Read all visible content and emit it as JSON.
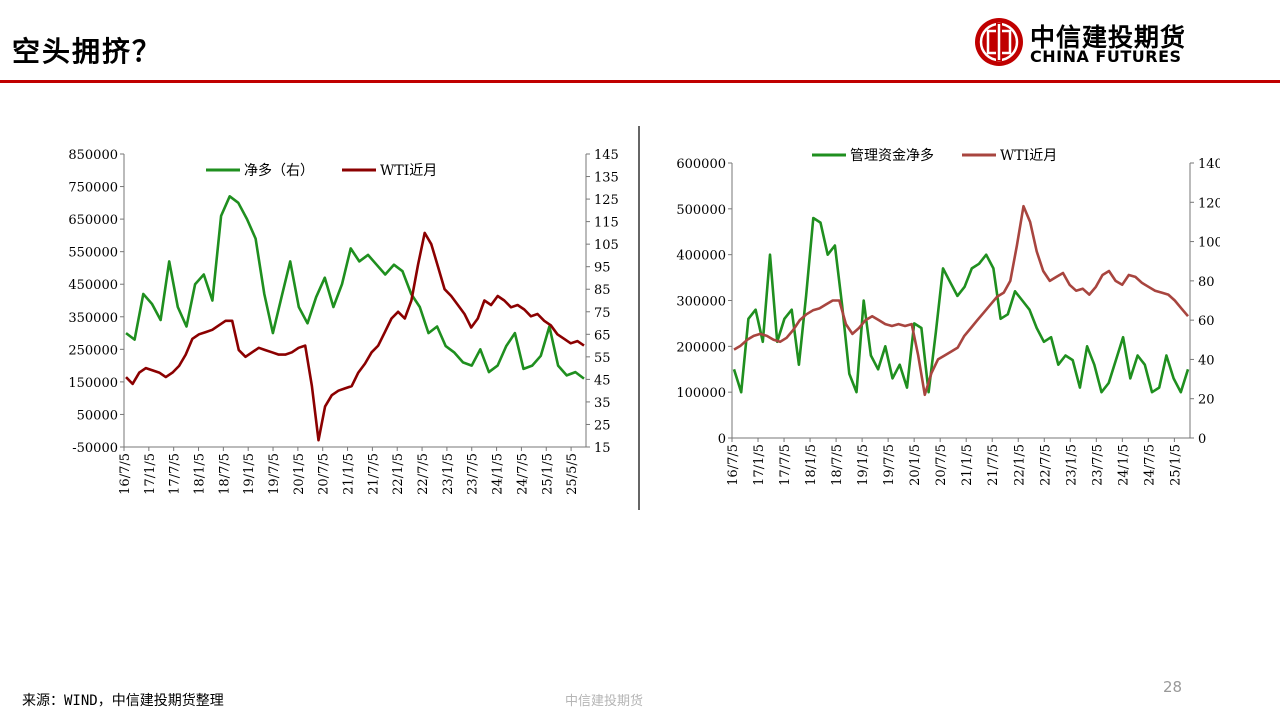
{
  "page": {
    "title": "空头拥挤？",
    "brand_cn": "中信建投期货",
    "brand_en": "CHINA FUTURES",
    "source": "来源：WIND，中信建投期货整理",
    "footer": "中信建投期货",
    "page_number": "28"
  },
  "colors": {
    "green": "#1f8f1f",
    "darkred": "#8b0000",
    "brown": "#a8453f",
    "brand_red": "#c00000"
  },
  "chart_data": [
    {
      "type": "line",
      "x_ticks": [
        "16/7/5",
        "17/1/5",
        "17/7/5",
        "18/1/5",
        "18/7/5",
        "19/1/5",
        "19/7/5",
        "20/1/5",
        "20/7/5",
        "21/1/5",
        "21/7/5",
        "22/1/5",
        "22/7/5",
        "23/1/5",
        "23/7/5",
        "24/1/5",
        "24/7/5",
        "25/1/5",
        "25/5/5"
      ],
      "y_left": {
        "ticks": [
          "850000",
          "750000",
          "650000",
          "550000",
          "450000",
          "350000",
          "250000",
          "150000",
          "50000",
          "-50000"
        ],
        "lim": [
          -50000,
          850000
        ]
      },
      "y_right": {
        "ticks": [
          "145",
          "135",
          "125",
          "115",
          "105",
          "95",
          "85",
          "75",
          "65",
          "55",
          "45",
          "35",
          "25",
          "15"
        ],
        "lim": [
          15,
          145
        ]
      },
      "series": [
        {
          "name": "净多（右）",
          "axis": "left",
          "color": "#1f8f1f",
          "values": [
            300000,
            280000,
            420000,
            390000,
            340000,
            520000,
            380000,
            320000,
            450000,
            480000,
            400000,
            660000,
            720000,
            700000,
            650000,
            590000,
            420000,
            300000,
            410000,
            520000,
            380000,
            330000,
            410000,
            470000,
            380000,
            450000,
            560000,
            520000,
            540000,
            510000,
            480000,
            510000,
            490000,
            420000,
            380000,
            300000,
            320000,
            260000,
            240000,
            210000,
            200000,
            250000,
            180000,
            200000,
            260000,
            300000,
            190000,
            200000,
            230000,
            320000,
            200000,
            170000,
            180000,
            160000
          ]
        },
        {
          "name": "WTI近月",
          "axis": "right",
          "color": "#8b0000",
          "values": [
            46,
            43,
            48,
            50,
            49,
            48,
            46,
            48,
            51,
            56,
            63,
            65,
            66,
            67,
            69,
            71,
            71,
            58,
            55,
            57,
            59,
            58,
            57,
            56,
            56,
            57,
            59,
            60,
            42,
            18,
            33,
            38,
            40,
            41,
            42,
            48,
            52,
            57,
            60,
            66,
            72,
            75,
            72,
            80,
            96,
            110,
            105,
            95,
            85,
            82,
            78,
            74,
            68,
            72,
            80,
            78,
            82,
            80,
            77,
            78,
            76,
            73,
            74,
            71,
            69,
            65,
            63,
            61,
            62,
            60
          ]
        }
      ]
    },
    {
      "type": "line",
      "x_ticks": [
        "16/7/5",
        "17/1/5",
        "17/7/5",
        "18/1/5",
        "18/7/5",
        "19/1/5",
        "19/7/5",
        "20/1/5",
        "20/7/5",
        "21/1/5",
        "21/7/5",
        "22/1/5",
        "22/7/5",
        "23/1/5",
        "23/7/5",
        "24/1/5",
        "24/7/5",
        "25/1/5"
      ],
      "y_left": {
        "ticks": [
          "600000",
          "500000",
          "400000",
          "300000",
          "200000",
          "100000",
          "0"
        ],
        "lim": [
          0,
          600000
        ]
      },
      "y_right": {
        "ticks": [
          "140",
          "120",
          "100",
          "80",
          "60",
          "40",
          "20",
          "0"
        ],
        "lim": [
          0,
          140
        ]
      },
      "series": [
        {
          "name": "管理资金净多",
          "axis": "left",
          "color": "#1f8f1f",
          "values": [
            150000,
            100000,
            260000,
            280000,
            210000,
            400000,
            210000,
            260000,
            280000,
            160000,
            310000,
            480000,
            470000,
            400000,
            420000,
            290000,
            140000,
            100000,
            300000,
            180000,
            150000,
            200000,
            130000,
            160000,
            110000,
            250000,
            240000,
            100000,
            230000,
            370000,
            340000,
            310000,
            330000,
            370000,
            380000,
            400000,
            370000,
            260000,
            270000,
            320000,
            300000,
            280000,
            240000,
            210000,
            220000,
            160000,
            180000,
            170000,
            110000,
            200000,
            160000,
            100000,
            120000,
            170000,
            220000,
            130000,
            180000,
            160000,
            100000,
            110000,
            180000,
            130000,
            100000,
            150000
          ]
        },
        {
          "name": "WTI近月",
          "axis": "right",
          "color": "#a8453f",
          "values": [
            45,
            47,
            50,
            52,
            53,
            52,
            50,
            49,
            51,
            55,
            60,
            63,
            65,
            66,
            68,
            70,
            70,
            58,
            53,
            56,
            60,
            62,
            60,
            58,
            57,
            58,
            57,
            58,
            42,
            22,
            33,
            40,
            42,
            44,
            46,
            52,
            56,
            60,
            64,
            68,
            72,
            74,
            80,
            98,
            118,
            110,
            95,
            85,
            80,
            82,
            84,
            78,
            75,
            76,
            73,
            77,
            83,
            85,
            80,
            78,
            83,
            82,
            79,
            77,
            75,
            74,
            73,
            70,
            66,
            62
          ]
        }
      ]
    }
  ]
}
